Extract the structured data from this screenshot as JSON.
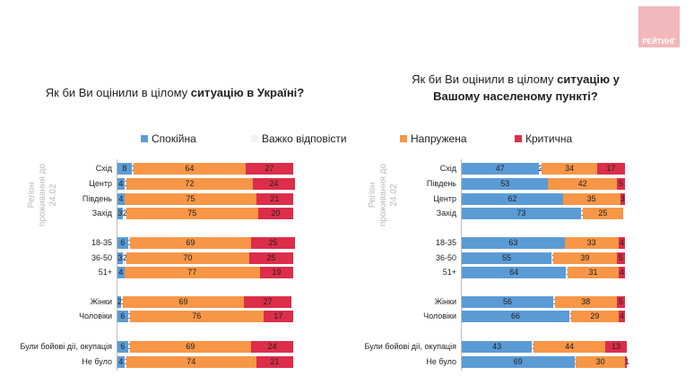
{
  "logo": "РЕЙТИНГ",
  "legend": [
    {
      "label": "Спокійна",
      "color": "#5b9bd5"
    },
    {
      "label": "Важко відповісти",
      "color": "#f2f2f2"
    },
    {
      "label": "Напружена",
      "color": "#f79646"
    },
    {
      "label": "Критична",
      "color": "#dc2d4a"
    }
  ],
  "chart_data": [
    {
      "type": "bar",
      "orientation": "horizontal-stacked-100",
      "title_pre": "Як би Ви оцінили в цілому ",
      "title_bold": "ситуацію в Україні?",
      "group_label": "Регіон проживання до 24.02",
      "categories": [
        "Схід",
        "Центр",
        "Південь",
        "Захід",
        "18-35",
        "36-50",
        "51+",
        "Жінки",
        "Чоловіки",
        "Були бойові дії, окупація",
        "Не було"
      ],
      "series": [
        {
          "name": "Спокійна",
          "values": [
            8,
            4,
            4,
            3,
            6,
            3,
            4,
            2,
            6,
            6,
            4
          ]
        },
        {
          "name": "Важко відповісти",
          "values": [
            1,
            1,
            0,
            2,
            1,
            2,
            0,
            1,
            1,
            1,
            1
          ]
        },
        {
          "name": "Напружена",
          "values": [
            64,
            72,
            75,
            75,
            69,
            70,
            77,
            69,
            76,
            69,
            74
          ]
        },
        {
          "name": "Критична",
          "values": [
            27,
            24,
            21,
            20,
            25,
            25,
            19,
            27,
            17,
            24,
            21
          ]
        }
      ]
    },
    {
      "type": "bar",
      "orientation": "horizontal-stacked-100",
      "title_pre": "Як би Ви оцінили в цілому ",
      "title_bold": "ситуацію у Вашому населеному пункті?",
      "group_label": "Регіон проживання до 24.02",
      "categories": [
        "Схід",
        "Південь",
        "Центр",
        "Захід",
        "18-35",
        "36-50",
        "51+",
        "Жінки",
        "Чоловіки",
        "Були бойові дії, окупація",
        "Не було"
      ],
      "series": [
        {
          "name": "Спокійна",
          "values": [
            47,
            53,
            62,
            73,
            63,
            55,
            64,
            56,
            66,
            43,
            69
          ]
        },
        {
          "name": "Важко відповісти",
          "values": [
            2,
            0,
            0,
            1,
            0,
            1,
            1,
            1,
            1,
            1,
            1
          ]
        },
        {
          "name": "Напружена",
          "values": [
            34,
            42,
            35,
            25,
            33,
            39,
            31,
            38,
            29,
            44,
            30
          ]
        },
        {
          "name": "Критична",
          "values": [
            17,
            5,
            3,
            0,
            4,
            5,
            4,
            5,
            4,
            13,
            1
          ]
        }
      ]
    }
  ]
}
